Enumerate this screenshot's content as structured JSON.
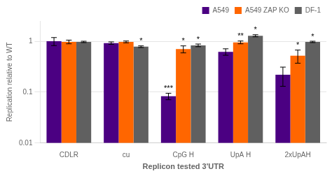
{
  "chart_data": {
    "type": "bar",
    "categories": [
      "CDLR",
      "cu",
      "CpG H",
      "UpA H",
      "2xUpAH"
    ],
    "series": [
      {
        "name": "A549",
        "color": "#4B0082",
        "values": [
          1.0,
          0.92,
          0.083,
          0.62,
          0.22
        ],
        "errors": [
          0.18,
          0.05,
          0.012,
          0.09,
          0.09
        ]
      },
      {
        "name": "A549 ZAP KO",
        "color": "#FF6600",
        "values": [
          0.97,
          0.97,
          0.7,
          0.95,
          0.52
        ],
        "errors": [
          0.08,
          0.04,
          0.11,
          0.06,
          0.15
        ]
      },
      {
        "name": "DF-1",
        "color": "#606060",
        "values": [
          0.97,
          0.78,
          0.83,
          1.28,
          0.97
        ],
        "errors": [
          0.03,
          0.03,
          0.05,
          0.06,
          0.03
        ]
      }
    ],
    "annotations": [
      {
        "category": "cu",
        "series": "DF-1",
        "label": "*"
      },
      {
        "category": "CpG H",
        "series": "A549",
        "label": "***"
      },
      {
        "category": "CpG H",
        "series": "A549 ZAP KO",
        "label": "*"
      },
      {
        "category": "CpG H",
        "series": "DF-1",
        "label": "*"
      },
      {
        "category": "UpA H",
        "series": "A549 ZAP KO",
        "label": "**"
      },
      {
        "category": "UpA H",
        "series": "DF-1",
        "label": "*"
      },
      {
        "category": "2xUpAH",
        "series": "A549 ZAP KO",
        "label": "*"
      },
      {
        "category": "2xUpAH",
        "series": "DF-1",
        "label": "*"
      }
    ],
    "xlabel": "Replicon tested 3'UTR",
    "ylabel": "Replication relative to WT",
    "log": "y",
    "ylim": [
      0.01,
      2.5
    ],
    "yticks": [
      0.01,
      0.1,
      1
    ],
    "grid": "y",
    "legend": "upper right"
  }
}
